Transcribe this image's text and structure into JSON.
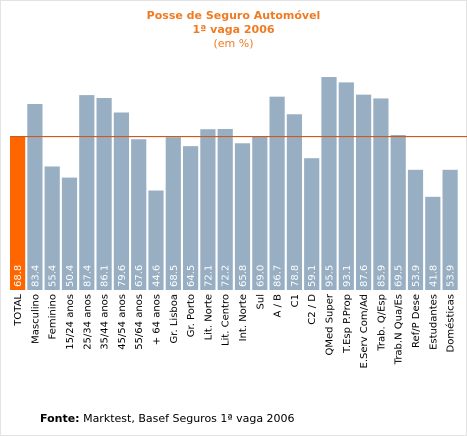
{
  "chart_data": {
    "type": "bar",
    "title": "Posse de Seguro Automóvel",
    "subtitle": "1ª vaga 2006",
    "unit": "(em %)",
    "categories": [
      "TOTAL",
      "Masculino",
      "Feminino",
      "15/24 anos",
      "25/34 anos",
      "35/44 anos",
      "45/54 anos",
      "55/64 anos",
      "+ 64 anos",
      "Gr. Lisboa",
      "Gr. Porto",
      "Lit. Norte",
      "Lit. Centro",
      "Int. Norte",
      "Sul",
      "A / B",
      "C1",
      "C2 / D",
      "QMed Super",
      "T.Esp P.Prop",
      "E.Serv Com/Ad",
      "Trab. Q/Esp",
      "Trab.N Qua/Es",
      "Ref/P Dese",
      "Estudantes",
      "Domésticas"
    ],
    "values": [
      68.8,
      83.4,
      55.4,
      50.4,
      87.4,
      86.1,
      79.6,
      67.6,
      44.6,
      68.5,
      64.5,
      72.1,
      72.2,
      65.8,
      69.0,
      86.7,
      78.8,
      59.1,
      95.5,
      93.1,
      87.6,
      85.9,
      69.5,
      53.9,
      41.8,
      53.9
    ],
    "value_labels": [
      "68.8",
      "83.4",
      "55.4",
      "50.4",
      "87.4",
      "86.1",
      "79.6",
      "67.6",
      "44.6",
      "68.5",
      "64.5",
      "72.1",
      "72.2",
      "65.8",
      "69.0",
      "86.7",
      "78.8",
      "59.1",
      "95.5",
      "93.1",
      "87.6",
      "85.9",
      "69.5",
      "53.9",
      "41.8",
      "53.9"
    ],
    "reference_line": 68.8,
    "ylim": [
      0,
      100
    ],
    "grid": false,
    "legend": "none",
    "colors": {
      "total_bar": "#ff6600",
      "bar": "#97aec3",
      "reference_line": "#cc5a1a",
      "title": "#ef7a22"
    }
  },
  "source": {
    "label": "Fonte:",
    "text": " Marktest, Basef Seguros 1ª vaga 2006"
  }
}
